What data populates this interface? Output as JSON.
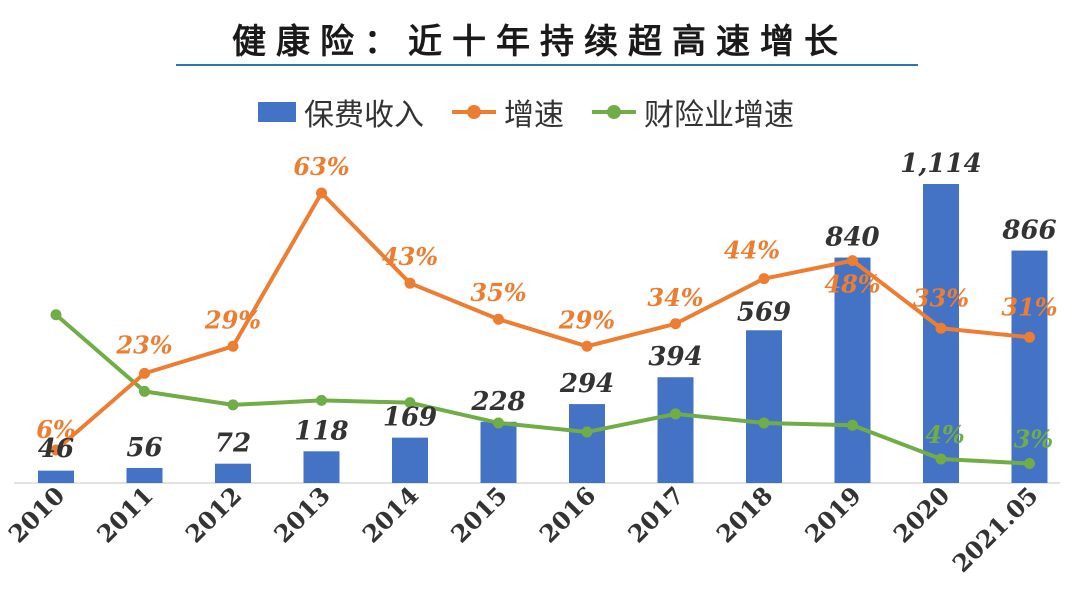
{
  "title": "健康险：近十年持续超高速增长",
  "colors": {
    "bar": "#4472c4",
    "growth": "#ed7d31",
    "pc_growth": "#70ad47"
  },
  "legend": [
    {
      "label": "保费收入",
      "kind": "bar",
      "color": "#4472c4"
    },
    {
      "label": "增速",
      "kind": "line",
      "color": "#ed7d31"
    },
    {
      "label": "财险业增速",
      "kind": "line",
      "color": "#70ad47"
    }
  ],
  "chart_data": {
    "type": "bar",
    "categories": [
      "2010",
      "2011",
      "2012",
      "2013",
      "2014",
      "2015",
      "2016",
      "2017",
      "2018",
      "2019",
      "2020",
      "2021.05"
    ],
    "series": [
      {
        "name": "保费收入",
        "type": "bar",
        "values": [
          46,
          56,
          72,
          118,
          169,
          228,
          294,
          394,
          569,
          840,
          1114,
          866
        ],
        "labels": [
          "46",
          "56",
          "72",
          "118",
          "169",
          "228",
          "294",
          "394",
          "569",
          "840",
          "1,114",
          "866"
        ]
      },
      {
        "name": "增速",
        "type": "line",
        "values": [
          6,
          23,
          29,
          63,
          43,
          35,
          29,
          34,
          44,
          48,
          33,
          31
        ],
        "labels": [
          "6%",
          "23%",
          "29%",
          "63%",
          "43%",
          "35%",
          "29%",
          "34%",
          "44%",
          "48%",
          "33%",
          "31%"
        ]
      },
      {
        "name": "财险业增速",
        "type": "line",
        "values": [
          36,
          19,
          16,
          17,
          16.5,
          12,
          10,
          14,
          12,
          11.5,
          4,
          3
        ],
        "labels": [
          "",
          "",
          "",
          "",
          "",
          "",
          "",
          "",
          "",
          "",
          "4%",
          "3%"
        ]
      }
    ],
    "bar_ylim": [
      0,
      1300
    ],
    "line_ylim": [
      0,
      70
    ],
    "grid": false,
    "legend_position": "top"
  }
}
